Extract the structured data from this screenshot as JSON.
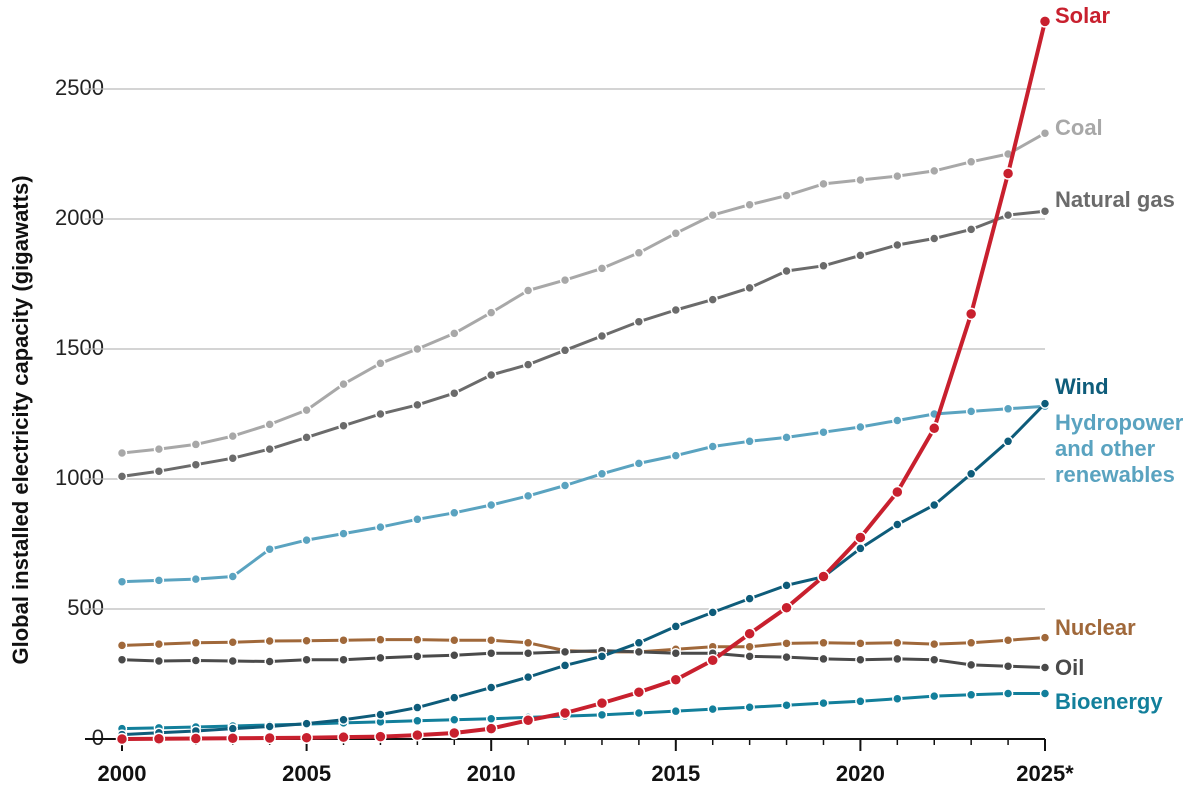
{
  "chart_data": {
    "type": "line",
    "y_label": "Global installed electricity capacity (gigawatts)",
    "x": [
      2000,
      2001,
      2002,
      2003,
      2004,
      2005,
      2006,
      2007,
      2008,
      2009,
      2010,
      2011,
      2012,
      2013,
      2014,
      2015,
      2016,
      2017,
      2018,
      2019,
      2020,
      2021,
      2022,
      2023,
      2024,
      2025
    ],
    "xlim": [
      2000,
      2025
    ],
    "xticks": [
      2000,
      2005,
      2010,
      2015,
      2020,
      {
        "value": 2025,
        "label": "2025*"
      }
    ],
    "ylim": [
      0,
      2800
    ],
    "yticks": [
      0,
      500,
      1000,
      1500,
      2000,
      2500
    ],
    "grid": true,
    "series": [
      {
        "name": "Coal",
        "color": "#a8a8a8",
        "values": [
          1100,
          1115,
          1133,
          1165,
          1210,
          1265,
          1365,
          1445,
          1500,
          1560,
          1640,
          1725,
          1765,
          1810,
          1870,
          1945,
          2015,
          2055,
          2090,
          2135,
          2150,
          2165,
          2185,
          2220,
          2250,
          2330
        ]
      },
      {
        "name": "Natural gas",
        "color": "#6b6b6b",
        "values": [
          1010,
          1030,
          1055,
          1080,
          1115,
          1160,
          1205,
          1250,
          1285,
          1330,
          1400,
          1440,
          1495,
          1550,
          1605,
          1650,
          1690,
          1735,
          1800,
          1820,
          1860,
          1900,
          1925,
          1960,
          2015,
          2030
        ]
      },
      {
        "name": "Hydropower and other renewables",
        "color": "#5aa3c0",
        "values": [
          605,
          610,
          615,
          625,
          730,
          765,
          790,
          815,
          845,
          870,
          900,
          935,
          975,
          1020,
          1060,
          1090,
          1125,
          1145,
          1160,
          1180,
          1200,
          1225,
          1250,
          1260,
          1270,
          1280
        ]
      },
      {
        "name": "Nuclear",
        "color": "#a0683a",
        "values": [
          360,
          365,
          370,
          372,
          377,
          378,
          380,
          382,
          382,
          380,
          380,
          370,
          340,
          335,
          335,
          345,
          355,
          355,
          368,
          370,
          368,
          370,
          365,
          370,
          380,
          390
        ]
      },
      {
        "name": "Oil",
        "color": "#4a4a4a",
        "values": [
          305,
          300,
          302,
          300,
          298,
          305,
          305,
          312,
          318,
          322,
          330,
          330,
          335,
          340,
          335,
          330,
          330,
          318,
          315,
          308,
          305,
          308,
          305,
          285,
          280,
          275
        ]
      },
      {
        "name": "Bioenergy",
        "color": "#127f9b",
        "values": [
          40,
          43,
          46,
          50,
          54,
          57,
          62,
          66,
          70,
          74,
          78,
          83,
          88,
          93,
          100,
          107,
          115,
          122,
          130,
          138,
          145,
          155,
          165,
          170,
          175,
          175
        ]
      },
      {
        "name": "Wind",
        "color": "#0e5c7a",
        "values": [
          17,
          24,
          31,
          40,
          48,
          59,
          74,
          94,
          121,
          159,
          198,
          238,
          283,
          318,
          370,
          433,
          487,
          540,
          591,
          624,
          733,
          825,
          900,
          1020,
          1145,
          1290
        ]
      },
      {
        "name": "Solar",
        "color": "#c8202e",
        "values": [
          0,
          1,
          2,
          3,
          4,
          5,
          7,
          9,
          15,
          23,
          40,
          72,
          100,
          138,
          180,
          228,
          303,
          405,
          505,
          625,
          775,
          950,
          1195,
          1635,
          2175,
          2760
        ]
      }
    ]
  }
}
